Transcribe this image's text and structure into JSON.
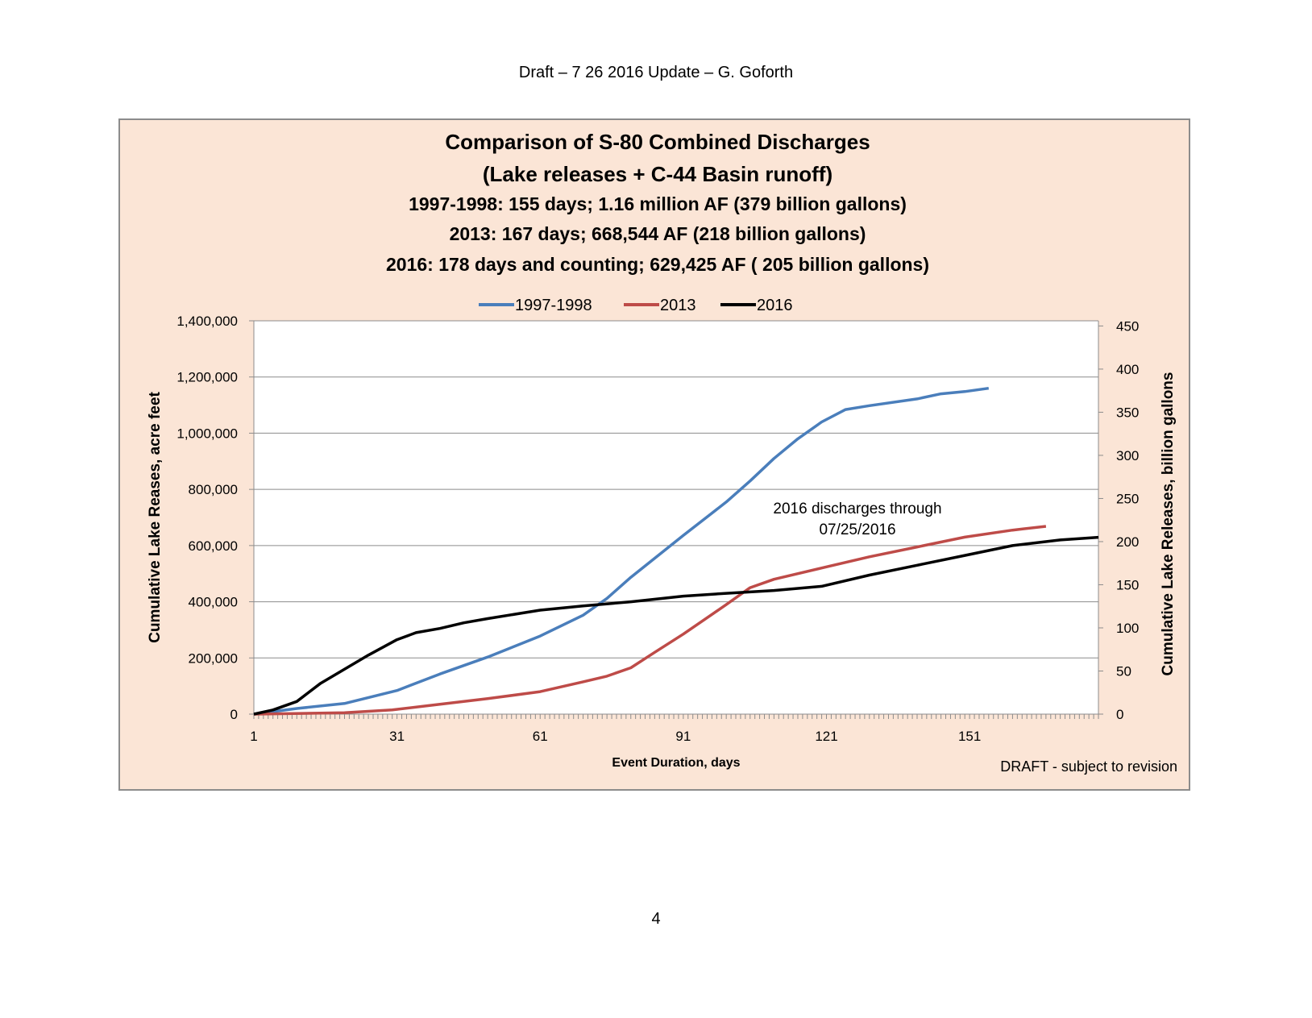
{
  "page": {
    "header": "Draft – 7 26 2016 Update – G. Goforth",
    "page_number": "4"
  },
  "chart_data": {
    "type": "line",
    "title": "Comparison of S-80 Combined Discharges",
    "subtitle_lines": [
      "(Lake releases + C-44 Basin runoff)",
      "1997-1998: 155 days; 1.16 million AF (379 billion gallons)",
      "2013: 167 days; 668,544 AF (218 billion gallons)",
      "2016: 178 days and counting; 629,425 AF ( 205 billion gallons)"
    ],
    "xlabel": "Event Duration, days",
    "ylabel": "Cumulative Lake Reases, acre feet",
    "y2label": "Cumulative Lake Releases, billion gallons",
    "xlim": [
      1,
      178
    ],
    "ylim": [
      0,
      1400000
    ],
    "y2lim": [
      0,
      456
    ],
    "x_ticks": [
      "1",
      "31",
      "61",
      "91",
      "121",
      "151"
    ],
    "x_tick_values": [
      1,
      31,
      61,
      91,
      121,
      151
    ],
    "y_ticks": [
      "0",
      "200,000",
      "400,000",
      "600,000",
      "800,000",
      "1,000,000",
      "1,200,000",
      "1,400,000"
    ],
    "y_tick_values": [
      0,
      200000,
      400000,
      600000,
      800000,
      1000000,
      1200000,
      1400000
    ],
    "y2_ticks": [
      "0",
      "50",
      "100",
      "150",
      "200",
      "250",
      "300",
      "350",
      "400",
      "450"
    ],
    "y2_tick_values": [
      0,
      50,
      100,
      150,
      200,
      250,
      300,
      350,
      400,
      450
    ],
    "grid": true,
    "legend_position": "top-center",
    "annotation": [
      "2016 discharges through",
      "07/25/2016"
    ],
    "watermark": "DRAFT - subject to revision",
    "background_color": "#fbe5d6",
    "series": [
      {
        "name": "1997-1998",
        "color": "#4a7ebb",
        "x": [
          1,
          10,
          20,
          31,
          40,
          50,
          61,
          70,
          75,
          80,
          91,
          100,
          105,
          110,
          115,
          120,
          125,
          130,
          140,
          145,
          150,
          155
        ],
        "y": [
          0,
          20000,
          38000,
          84000,
          143000,
          203000,
          278000,
          352000,
          412000,
          487000,
          636000,
          755000,
          830000,
          910000,
          980000,
          1040000,
          1084000,
          1098000,
          1122000,
          1140000,
          1148000,
          1160000
        ]
      },
      {
        "name": "2013",
        "color": "#be4b48",
        "x": [
          1,
          20,
          30,
          40,
          50,
          61,
          70,
          75,
          80,
          85,
          91,
          100,
          105,
          110,
          120,
          130,
          140,
          150,
          160,
          167
        ],
        "y": [
          0,
          5000,
          15000,
          35000,
          55000,
          80000,
          115000,
          135000,
          165000,
          220000,
          285000,
          390000,
          450000,
          480000,
          520000,
          560000,
          595000,
          630000,
          655000,
          668544
        ]
      },
      {
        "name": "2016",
        "color": "#000000",
        "x": [
          1,
          5,
          10,
          15,
          20,
          25,
          31,
          35,
          40,
          45,
          50,
          61,
          70,
          80,
          91,
          100,
          110,
          120,
          130,
          140,
          150,
          160,
          170,
          178
        ],
        "y": [
          0,
          15000,
          45000,
          110000,
          160000,
          210000,
          265000,
          290000,
          305000,
          325000,
          340000,
          370000,
          385000,
          400000,
          420000,
          430000,
          440000,
          455000,
          495000,
          530000,
          565000,
          600000,
          620000,
          629425
        ]
      }
    ]
  }
}
